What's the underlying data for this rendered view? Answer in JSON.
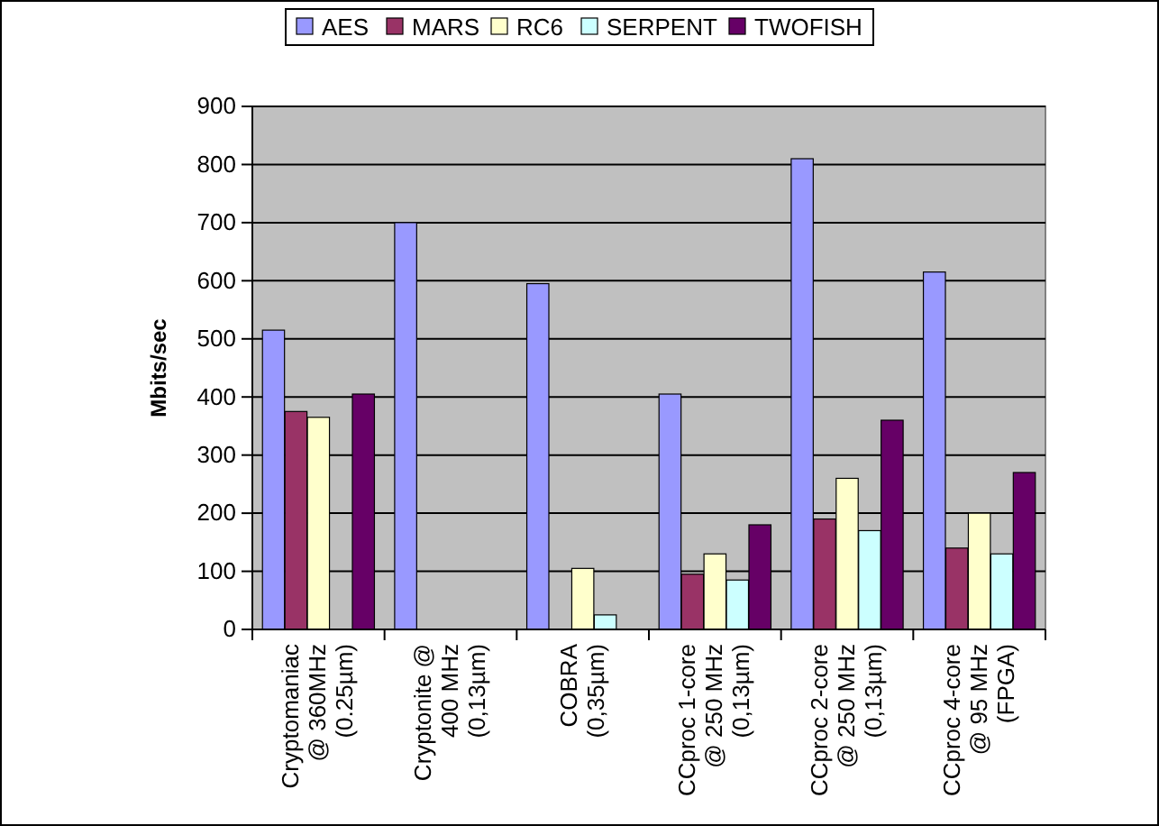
{
  "chart_data": {
    "type": "bar",
    "ylabel": "Mbits/sec",
    "categories": [
      "Cryptomaniac @ 360MHz (0.25µm)",
      "Cryptonite @ 400 MHz (0,13µm)",
      "COBRA (0,35µm)",
      "CCproc 1-core @ 250 MHz (0,13µm)",
      "CCproc 2-core @ 250 MHz (0,13µm)",
      "CCproc 4-core @ 95 MHz (FPGA)"
    ],
    "series": [
      {
        "name": "AES",
        "color": "#9999ff",
        "values": [
          515,
          700,
          595,
          405,
          810,
          615
        ]
      },
      {
        "name": "MARS",
        "color": "#993366",
        "values": [
          375,
          0,
          0,
          95,
          190,
          140
        ]
      },
      {
        "name": "RC6",
        "color": "#ffffcc",
        "values": [
          365,
          0,
          105,
          130,
          260,
          200
        ]
      },
      {
        "name": "SERPENT",
        "color": "#ccffff",
        "values": [
          0,
          0,
          25,
          85,
          170,
          130
        ]
      },
      {
        "name": "TWOFISH",
        "color": "#660066",
        "values": [
          405,
          0,
          0,
          180,
          360,
          270
        ]
      }
    ],
    "ylim": [
      0,
      900
    ],
    "yticks": [
      0,
      100,
      200,
      300,
      400,
      500,
      600,
      700,
      800,
      900
    ],
    "grid": "y",
    "legend": "top"
  }
}
